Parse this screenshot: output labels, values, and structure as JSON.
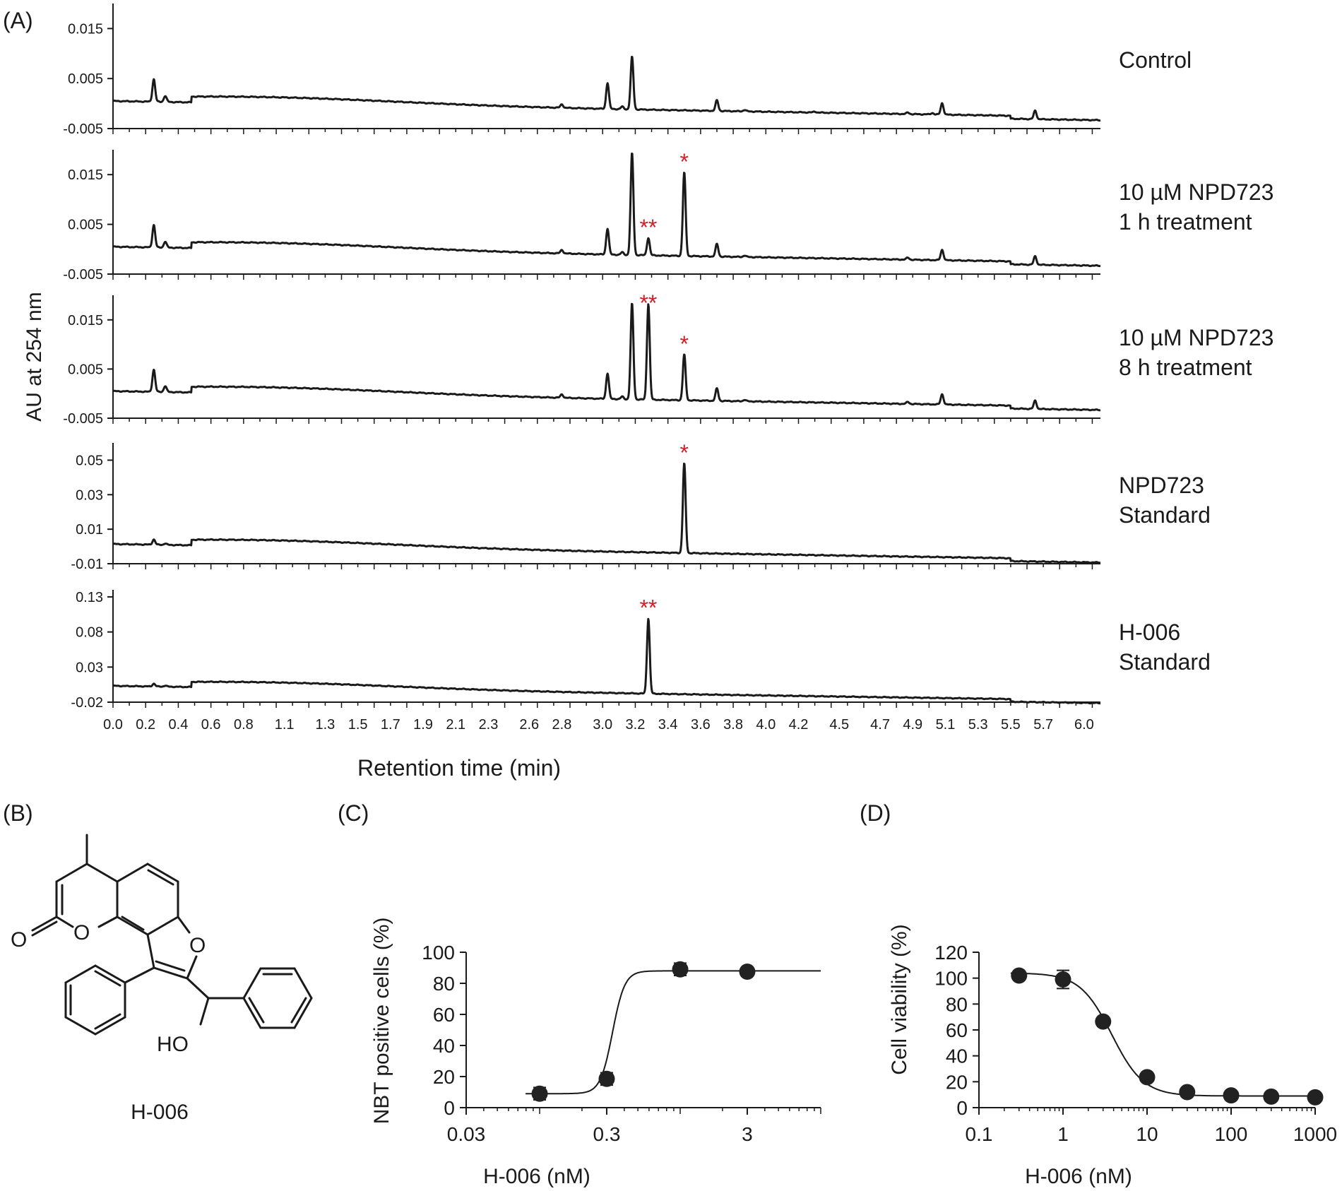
{
  "panel_labels": {
    "A": "(A)",
    "B": "(B)",
    "C": "(C)",
    "D": "(D)"
  },
  "colors": {
    "trace": "#1a1a1a",
    "marker": "#d22027",
    "point": "#222222"
  },
  "chart_data": [
    {
      "id": "A",
      "type": "line",
      "title": "",
      "xlabel": "Retention time (min)",
      "ylabel": "AU at 254 nm",
      "x_tick_labels": [
        "0.0",
        "0.2",
        "0.4",
        "0.6",
        "0.8",
        "1.1",
        "1.3",
        "1.5",
        "1.7",
        "1.9",
        "2.1",
        "2.3",
        "2.6",
        "2.8",
        "3.0",
        "3.2",
        "3.4",
        "3.6",
        "3.8",
        "4.0",
        "4.2",
        "4.5",
        "4.7",
        "4.9",
        "5.1",
        "5.3",
        "5.5",
        "5.7",
        "6.0"
      ],
      "xlim": [
        0,
        6.05
      ],
      "series": [
        {
          "name": "Control",
          "label_lines": [
            "Control"
          ],
          "ylim": [
            -0.005,
            0.02
          ],
          "yticks": [
            0.015,
            0.005,
            -0.005
          ],
          "ytick_labels": [
            "0.015",
            "0.005",
            "-0.005"
          ],
          "peaks": [
            [
              0.25,
              0.0045
            ],
            [
              0.32,
              0.0012
            ],
            [
              2.75,
              0.0007
            ],
            [
              3.03,
              0.0052
            ],
            [
              3.12,
              0.0005
            ],
            [
              3.18,
              0.0105
            ],
            [
              3.7,
              0.0021
            ],
            [
              3.87,
              0.0003
            ],
            [
              4.3,
              0.0002
            ],
            [
              4.87,
              0.0003
            ],
            [
              5.02,
              0.0003
            ],
            [
              5.08,
              0.0023
            ],
            [
              5.65,
              0.0017
            ]
          ],
          "markers": []
        },
        {
          "name": "10 µM NPD723 1 h treatment",
          "label_lines": [
            "10 µM NPD723",
            "1 h treatment"
          ],
          "ylim": [
            -0.005,
            0.02
          ],
          "yticks": [
            0.015,
            0.005,
            -0.005
          ],
          "ytick_labels": [
            "0.015",
            "0.005",
            "-0.005"
          ],
          "peaks": [
            [
              0.25,
              0.0045
            ],
            [
              0.32,
              0.0012
            ],
            [
              2.75,
              0.0007
            ],
            [
              3.03,
              0.0052
            ],
            [
              3.12,
              0.0005
            ],
            [
              3.18,
              0.0205
            ],
            [
              3.28,
              0.0035
            ],
            [
              3.5,
              0.0168
            ],
            [
              3.7,
              0.0025
            ],
            [
              3.87,
              0.0003
            ],
            [
              4.87,
              0.0004
            ],
            [
              5.08,
              0.0021
            ],
            [
              5.65,
              0.0017
            ]
          ],
          "markers": [
            {
              "x": 3.28,
              "text": "**"
            },
            {
              "x": 3.5,
              "text": "*"
            }
          ]
        },
        {
          "name": "10 µM NPD723 8 h treatment",
          "label_lines": [
            "10 µM NPD723",
            "8 h treatment"
          ],
          "ylim": [
            -0.005,
            0.02
          ],
          "yticks": [
            0.015,
            0.005,
            -0.005
          ],
          "ytick_labels": [
            "0.015",
            "0.005",
            "-0.005"
          ],
          "peaks": [
            [
              0.25,
              0.0045
            ],
            [
              0.32,
              0.0012
            ],
            [
              2.75,
              0.0007
            ],
            [
              3.03,
              0.0052
            ],
            [
              3.12,
              0.0005
            ],
            [
              3.18,
              0.0195
            ],
            [
              3.28,
              0.0195
            ],
            [
              3.5,
              0.0093
            ],
            [
              3.7,
              0.0025
            ],
            [
              3.87,
              0.0003
            ],
            [
              4.87,
              0.0004
            ],
            [
              5.08,
              0.0021
            ],
            [
              5.65,
              0.0017
            ]
          ],
          "markers": [
            {
              "x": 3.28,
              "text": "**"
            },
            {
              "x": 3.5,
              "text": "*"
            }
          ]
        },
        {
          "name": "NPD723 Standard",
          "label_lines": [
            "NPD723",
            "Standard"
          ],
          "ylim": [
            -0.01,
            0.06
          ],
          "yticks": [
            0.05,
            0.03,
            0.01,
            -0.01
          ],
          "ytick_labels": [
            "0.05",
            "0.03",
            "0.01",
            "-0.01"
          ],
          "peaks": [
            [
              0.25,
              0.003
            ],
            [
              0.32,
              0.0008
            ],
            [
              3.5,
              0.052
            ]
          ],
          "markers": [
            {
              "x": 3.5,
              "text": "*"
            }
          ]
        },
        {
          "name": "H-006 Standard",
          "label_lines": [
            "H-006",
            "Standard"
          ],
          "ylim": [
            -0.02,
            0.14
          ],
          "yticks": [
            0.13,
            0.08,
            0.03,
            -0.02
          ],
          "ytick_labels": [
            "0.13",
            "0.08",
            "0.03",
            "-0.02"
          ],
          "peaks": [
            [
              0.25,
              0.004
            ],
            [
              0.32,
              0.0015
            ],
            [
              3.28,
              0.107
            ]
          ],
          "markers": [
            {
              "x": 3.28,
              "text": "**"
            }
          ]
        }
      ]
    },
    {
      "id": "C",
      "type": "scatter",
      "title": "",
      "xlabel": "H-006 (nM)",
      "ylabel": "NBT positive cells (%)",
      "xscale": "log",
      "xlim": [
        0.03,
        10
      ],
      "ylim": [
        0,
        100
      ],
      "xticks": [
        0.03,
        0.3,
        3
      ],
      "xtick_labels": [
        "0.03",
        "0.3",
        "3"
      ],
      "yticks": [
        0,
        20,
        40,
        60,
        80,
        100
      ],
      "ytick_labels": [
        "0",
        "20",
        "40",
        "60",
        "80",
        "100"
      ],
      "x": [
        0.1,
        0.3,
        1,
        3
      ],
      "y": [
        9,
        18.5,
        89,
        87.5
      ],
      "err": [
        4,
        4,
        4,
        2
      ],
      "fit": {
        "bottom": 9,
        "top": 88,
        "ec50": 0.33,
        "hill": 10
      }
    },
    {
      "id": "D",
      "type": "scatter",
      "title": "",
      "xlabel": "H-006 (nM)",
      "ylabel": "Cell viability (%)",
      "xscale": "log",
      "xlim": [
        0.1,
        1000
      ],
      "ylim": [
        0,
        120
      ],
      "xticks": [
        0.1,
        1,
        10,
        100,
        1000
      ],
      "xtick_labels": [
        "0.1",
        "1",
        "10",
        "100",
        "1000"
      ],
      "yticks": [
        0,
        20,
        40,
        60,
        80,
        100,
        120
      ],
      "ytick_labels": [
        "0",
        "20",
        "40",
        "60",
        "80",
        "100",
        "120"
      ],
      "x": [
        0.3,
        1,
        3,
        10,
        30,
        100,
        300,
        1000
      ],
      "y": [
        102,
        99,
        66.5,
        23.5,
        12,
        9.5,
        8.5,
        8
      ],
      "err": [
        2,
        7,
        3,
        1.5,
        1,
        1,
        1,
        1
      ],
      "fit": {
        "bottom": 9,
        "top": 104,
        "ec50": 3.8,
        "hill": -2.3
      }
    }
  ],
  "structure": {
    "compound_name": "H-006",
    "atom_labels": [
      "O",
      "O",
      "O",
      "HO"
    ]
  }
}
